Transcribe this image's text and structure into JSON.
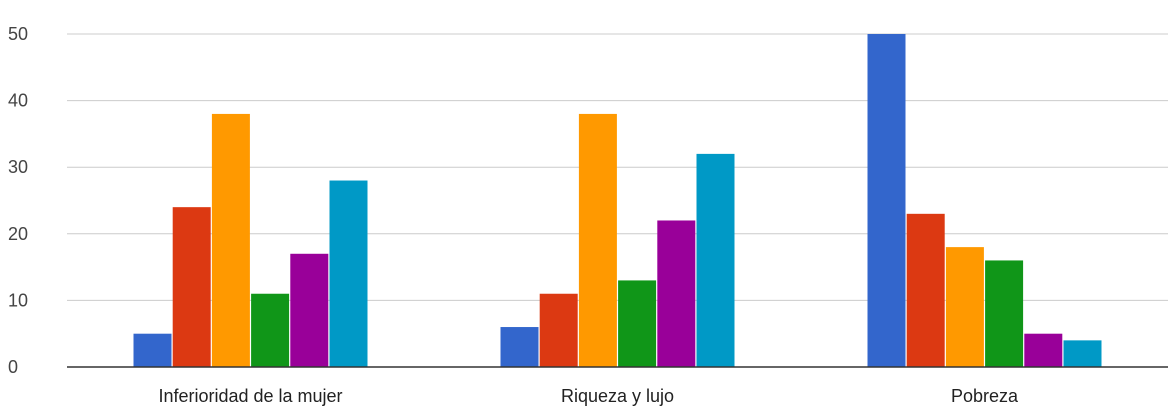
{
  "chart_data": {
    "type": "bar",
    "categories": [
      "Inferioridad de la mujer",
      "Riqueza y lujo",
      "Pobreza"
    ],
    "series": [
      {
        "color": "#3366cc",
        "values": [
          5,
          6,
          50
        ]
      },
      {
        "color": "#dc3912",
        "values": [
          24,
          11,
          23
        ]
      },
      {
        "color": "#ff9900",
        "values": [
          38,
          38,
          18
        ]
      },
      {
        "color": "#109618",
        "values": [
          11,
          13,
          16
        ]
      },
      {
        "color": "#990099",
        "values": [
          17,
          22,
          5
        ]
      },
      {
        "color": "#0099c6",
        "values": [
          28,
          32,
          4
        ]
      }
    ],
    "ylim": [
      0,
      50
    ],
    "yticks": [
      "0",
      "10",
      "20",
      "30",
      "40",
      "50"
    ],
    "grid": true,
    "legend": "none"
  }
}
